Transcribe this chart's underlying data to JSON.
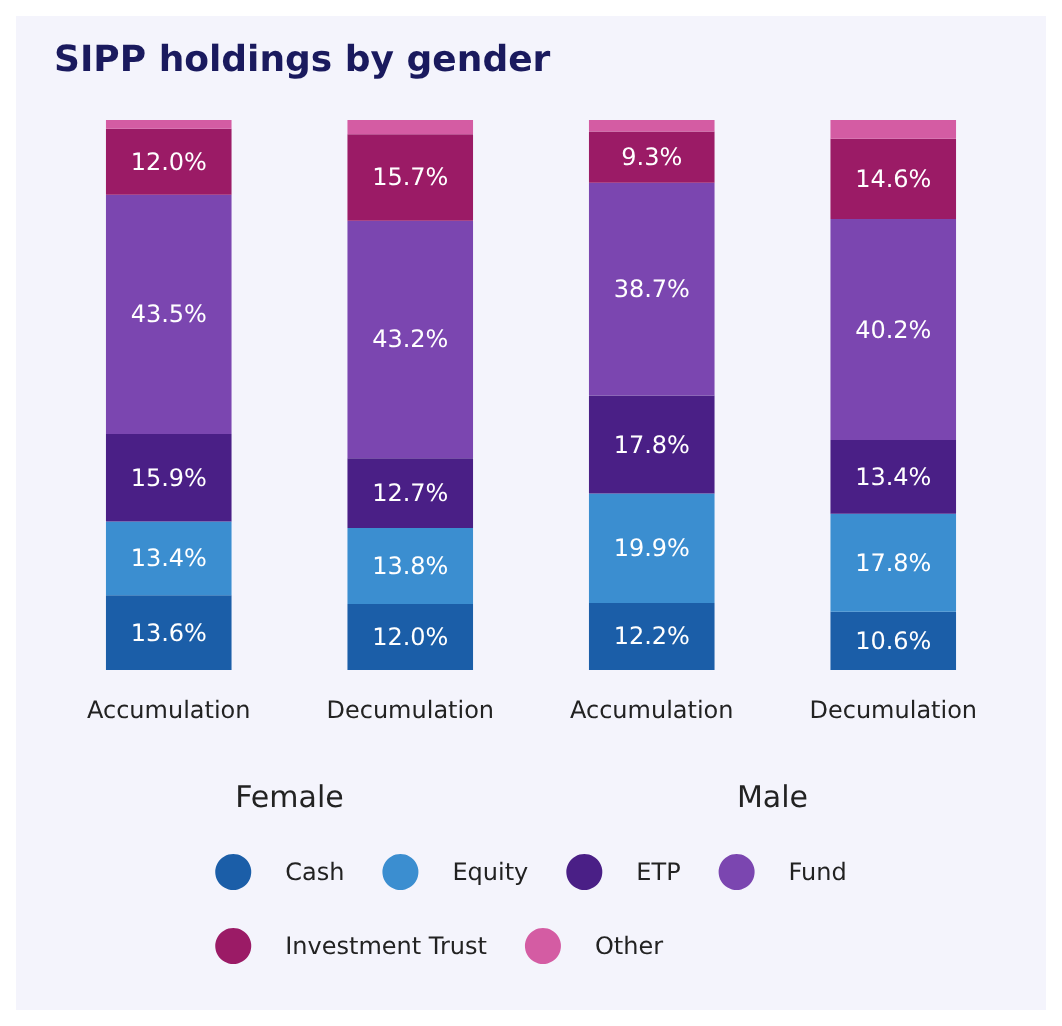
{
  "chart_data": {
    "type": "bar",
    "title": "SIPP holdings by gender",
    "stacked": true,
    "categories": [
      "Accumulation",
      "Decumulation",
      "Accumulation",
      "Decumulation"
    ],
    "series": [
      {
        "name": "Cash",
        "color": "#1b5ea8",
        "values": [
          13.6,
          12.0,
          12.2,
          10.6
        ],
        "value_labels": [
          "13.6%",
          "12.0%",
          "12.2%",
          "10.6%"
        ]
      },
      {
        "name": "Equity",
        "color": "#3b8ed0",
        "values": [
          13.4,
          13.8,
          19.9,
          17.8
        ],
        "value_labels": [
          "13.4%",
          "13.8%",
          "19.9%",
          "17.8%"
        ]
      },
      {
        "name": "ETP",
        "color": "#4a1f86",
        "values": [
          15.9,
          12.7,
          17.8,
          13.4
        ],
        "value_labels": [
          "15.9%",
          "12.7%",
          "17.8%",
          "13.4%"
        ]
      },
      {
        "name": "Fund",
        "color": "#7b46b0",
        "values": [
          43.5,
          43.2,
          38.7,
          40.2
        ],
        "value_labels": [
          "43.5%",
          "43.2%",
          "38.7%",
          "40.2%"
        ]
      },
      {
        "name": "Investment Trust",
        "color": "#9b1b66",
        "values": [
          12.0,
          15.7,
          9.3,
          14.6
        ],
        "value_labels": [
          "12.0%",
          "15.7%",
          "9.3%",
          "14.6%"
        ]
      },
      {
        "name": "Other",
        "color": "#d45ca3",
        "values": [
          1.6,
          2.6,
          2.1,
          3.4
        ],
        "value_labels": [
          null,
          null,
          null,
          null
        ]
      }
    ],
    "annotations": [
      "Female",
      "Male"
    ],
    "legend": "bottom",
    "grid": false
  }
}
